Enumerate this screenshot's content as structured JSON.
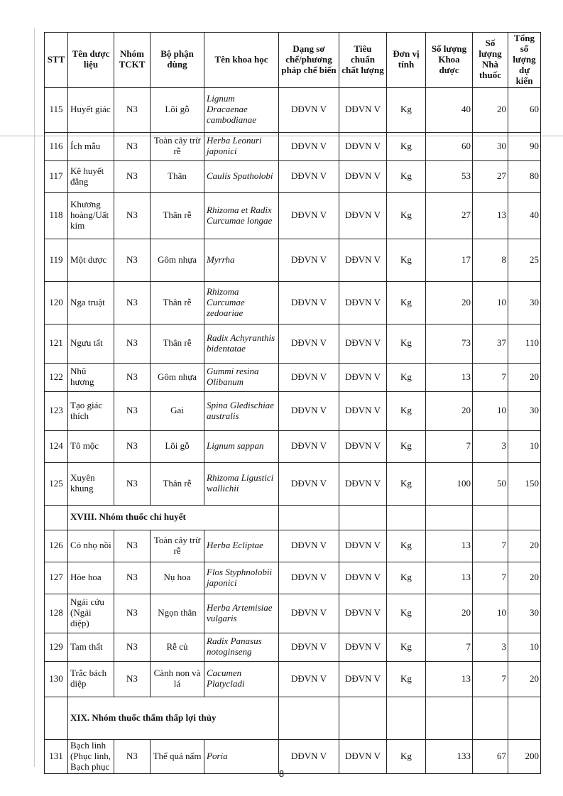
{
  "headers": [
    "STT",
    "Tên dược liệu",
    "Nhóm TCKT",
    "Bộ phận dùng",
    "Tên khoa học",
    "Dạng sơ chế/phương pháp chế biến",
    "Tiêu chuẩn chất lượng",
    "Đơn vị tính",
    "Số lượng Khoa dược",
    "Số lượng Nhà thuốc",
    "Tổng số lượng dự kiến"
  ],
  "rows": [
    {
      "type": "item",
      "stt": "115",
      "name": "Huyết giác",
      "group": "N3",
      "part": "Lõi gỗ",
      "sci": "Lignum Dracaenae cambodianae",
      "form": "DĐVN V",
      "std": "DĐVN V",
      "unit": "Kg",
      "khoa": "40",
      "nha": "20",
      "total": "60",
      "h": 63
    },
    {
      "type": "item",
      "stt": "116",
      "name": "Ích mẫu",
      "group": "N3",
      "part": "Toàn cây trừ rễ",
      "sci": "Herba Leonuri japonici",
      "form": "DĐVN V",
      "std": "DĐVN V",
      "unit": "Kg",
      "khoa": "60",
      "nha": "30",
      "total": "90",
      "h": 40
    },
    {
      "type": "item",
      "stt": "117",
      "name": "Kê huyết đằng",
      "group": "N3",
      "part": "Thân",
      "sci": "Caulis Spatholobi",
      "form": "DĐVN V",
      "std": "DĐVN V",
      "unit": "Kg",
      "khoa": "53",
      "nha": "27",
      "total": "80",
      "h": 45
    },
    {
      "type": "item",
      "stt": "118",
      "name": "Khương hoàng/Uất kim",
      "group": "N3",
      "part": "Thân rễ",
      "sci": "Rhizoma et Radix Curcumae longae",
      "form": "DĐVN V",
      "std": "DĐVN V",
      "unit": "Kg",
      "khoa": "27",
      "nha": "13",
      "total": "40",
      "h": 65
    },
    {
      "type": "item",
      "stt": "119",
      "name": "Một dược",
      "group": "N3",
      "part": "Gôm nhựa",
      "sci": "Myrrha",
      "form": "DĐVN V",
      "std": "DĐVN V",
      "unit": "Kg",
      "khoa": "17",
      "nha": "8",
      "total": "25",
      "h": 60
    },
    {
      "type": "item",
      "stt": "120",
      "name": "Nga truật",
      "group": "N3",
      "part": "Thân rễ",
      "sci": "Rhizoma Curcumae zedoariae",
      "form": "DĐVN V",
      "std": "DĐVN V",
      "unit": "Kg",
      "khoa": "20",
      "nha": "10",
      "total": "30",
      "h": 60
    },
    {
      "type": "item",
      "stt": "121",
      "name": "Ngưu tất",
      "group": "N3",
      "part": "Thân rễ",
      "sci": "Radix Achyranthis bidentatae",
      "form": "DĐVN V",
      "std": "DĐVN V",
      "unit": "Kg",
      "khoa": "73",
      "nha": "37",
      "total": "110",
      "h": 55
    },
    {
      "type": "item",
      "stt": "122",
      "name": "Nhũ hương",
      "group": "N3",
      "part": "Gôm nhựa",
      "sci": "Gummi resina Olibanum",
      "form": "DĐVN V",
      "std": "DĐVN V",
      "unit": "Kg",
      "khoa": "13",
      "nha": "7",
      "total": "20",
      "h": 40
    },
    {
      "type": "item",
      "stt": "123",
      "name": "Tạo giác thích",
      "group": "N3",
      "part": "Gai",
      "sci": "Spina Gledischiae australis",
      "form": "DĐVN V",
      "std": "DĐVN V",
      "unit": "Kg",
      "khoa": "20",
      "nha": "10",
      "total": "30",
      "h": 55
    },
    {
      "type": "item",
      "stt": "124",
      "name": "Tô mộc",
      "group": "N3",
      "part": "Lõi gỗ",
      "sci": "Lignum sappan",
      "form": "DĐVN V",
      "std": "DĐVN V",
      "unit": "Kg",
      "khoa": "7",
      "nha": "3",
      "total": "10",
      "h": 45
    },
    {
      "type": "item",
      "stt": "125",
      "name": "Xuyên khung",
      "group": "N3",
      "part": "Thân rễ",
      "sci": "Rhizoma Ligustici wallichii",
      "form": "DĐVN V",
      "std": "DĐVN V",
      "unit": "Kg",
      "khoa": "100",
      "nha": "50",
      "total": "150",
      "h": 60
    },
    {
      "type": "section",
      "title": "XVIII. Nhóm thuốc chỉ huyết",
      "h": 35
    },
    {
      "type": "item",
      "stt": "126",
      "name": "Cỏ nhọ nồi",
      "group": "N3",
      "part": "Toàn cây trừ rễ",
      "sci": "Herba Ecliptae",
      "form": "DĐVN V",
      "std": "DĐVN V",
      "unit": "Kg",
      "khoa": "13",
      "nha": "7",
      "total": "20",
      "h": 45
    },
    {
      "type": "item",
      "stt": "127",
      "name": "Hòe hoa",
      "group": "N3",
      "part": "Nụ hoa",
      "sci": "Flos Styphnolobii japonici",
      "form": "DĐVN V",
      "std": "DĐVN V",
      "unit": "Kg",
      "khoa": "13",
      "nha": "7",
      "total": "20",
      "h": 45
    },
    {
      "type": "item",
      "stt": "128",
      "name": "Ngải cứu (Ngải diệp)",
      "group": "N3",
      "part": "Ngọn thân",
      "sci": "Herba Artemisiae vulgaris",
      "form": "DĐVN V",
      "std": "DĐVN V",
      "unit": "Kg",
      "khoa": "20",
      "nha": "10",
      "total": "30",
      "h": 55
    },
    {
      "type": "item",
      "stt": "129",
      "name": "Tam thất",
      "group": "N3",
      "part": "Rễ củ",
      "sci": "Radix Panasus notoginseng",
      "form": "DĐVN V",
      "std": "DĐVN V",
      "unit": "Kg",
      "khoa": "7",
      "nha": "3",
      "total": "10",
      "h": 40
    },
    {
      "type": "item",
      "stt": "130",
      "name": "Trắc bách diệp",
      "group": "N3",
      "part": "Cành non và lá",
      "sci": "Cacumen Platycladi",
      "form": "DĐVN V",
      "std": "DĐVN V",
      "unit": "Kg",
      "khoa": "13",
      "nha": "7",
      "total": "20",
      "h": 50
    },
    {
      "type": "section",
      "title": "XIX. Nhóm thuốc thẩm thấp lợi thủy",
      "h": 60
    },
    {
      "type": "item",
      "stt": "131",
      "name": "Bạch linh (Phục linh, Bạch phục",
      "group": "N3",
      "part": "Thể quả nấm",
      "sci": "Poria",
      "form": "DĐVN V",
      "std": "DĐVN V",
      "unit": "Kg",
      "khoa": "133",
      "nha": "67",
      "total": "200",
      "h": 40
    }
  ],
  "page_number": "8"
}
